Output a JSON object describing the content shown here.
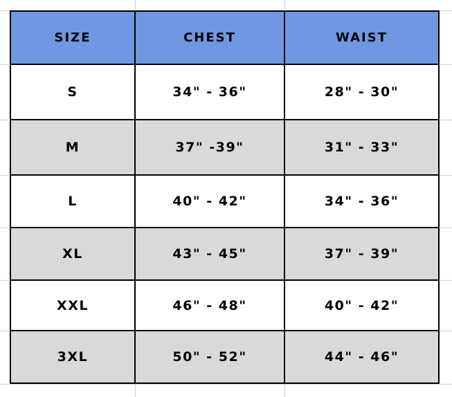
{
  "colors": {
    "header_bg": "#6f97e2",
    "alt_row_bg": "#d9d9d9",
    "border": "#000000"
  },
  "headers": [
    "SIZE",
    "CHEST",
    "WAIST"
  ],
  "rows": [
    {
      "size": "S",
      "chest": "34\" - 36\"",
      "waist": "28\" - 30\""
    },
    {
      "size": "M",
      "chest": "37\" -39\"",
      "waist": "31\" - 33\""
    },
    {
      "size": "L",
      "chest": "40\" - 42\"",
      "waist": "34\" - 36\""
    },
    {
      "size": "XL",
      "chest": "43\" - 45\"",
      "waist": "37\" - 39\""
    },
    {
      "size": "XXL",
      "chest": "46\" - 48\"",
      "waist": "40\" - 42\""
    },
    {
      "size": "3XL",
      "chest": "50\" - 52\"",
      "waist": "44\" - 46\""
    }
  ]
}
